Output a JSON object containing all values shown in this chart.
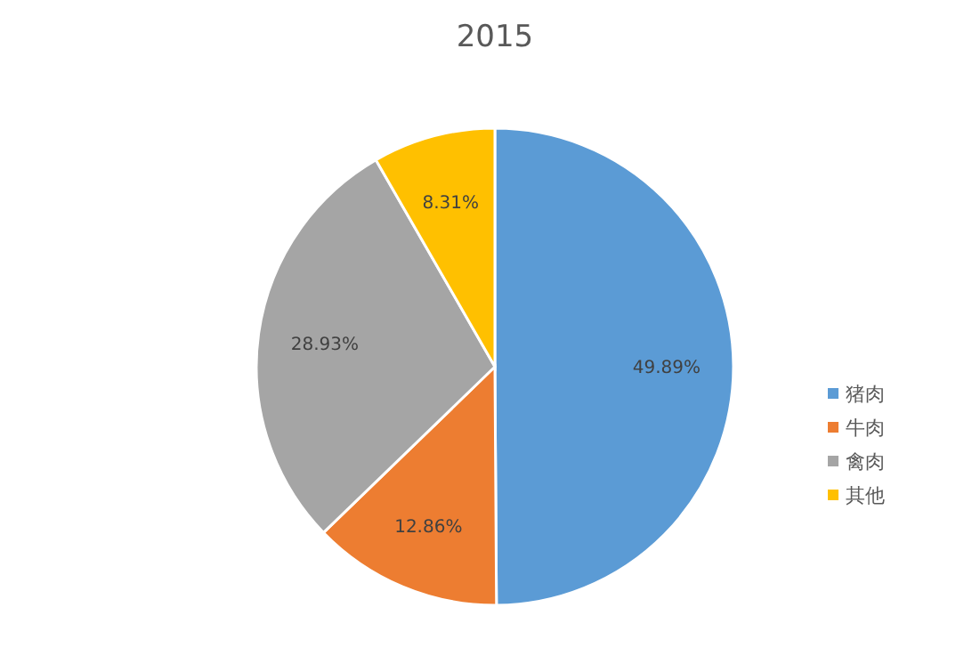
{
  "chart_data": {
    "type": "pie",
    "title": "2015",
    "categories": [
      "猪肉",
      "牛肉",
      "禽肉",
      "其他"
    ],
    "values": [
      49.89,
      12.86,
      28.93,
      8.31
    ],
    "colors": [
      "#5b9bd5",
      "#ed7d31",
      "#a5a5a5",
      "#ffc000"
    ],
    "value_labels": [
      "49.89%",
      "12.86%",
      "28.93%",
      "8.31%"
    ],
    "legend": "right"
  }
}
